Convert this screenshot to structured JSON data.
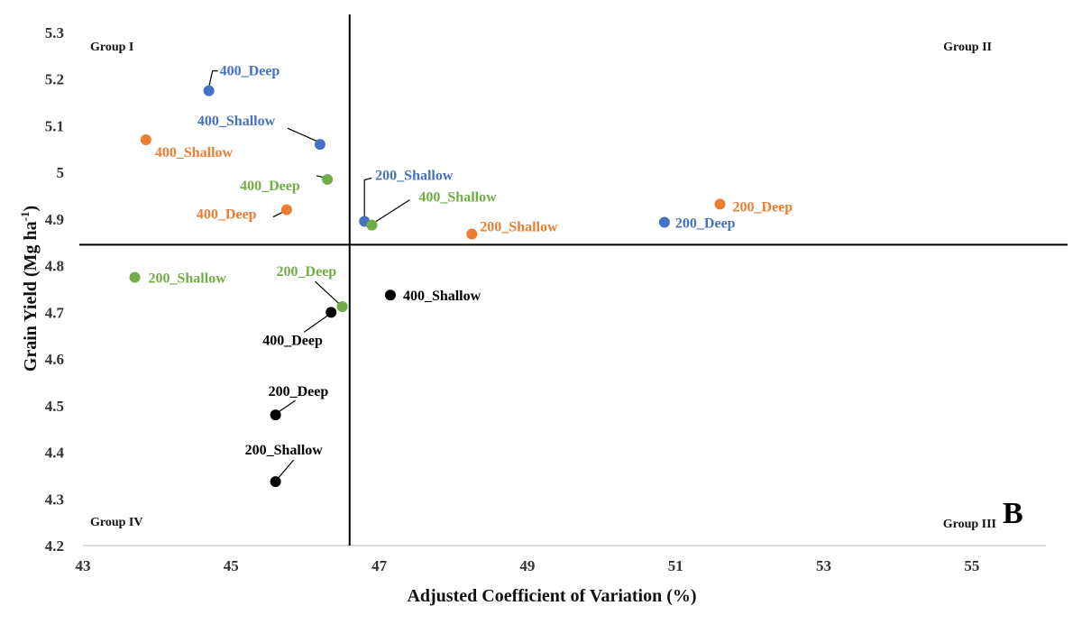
{
  "chart_data": {
    "type": "scatter",
    "xlabel": "Adjusted Coefficient of Variation (%)",
    "ylabel": "Grain Yield (Mg ha",
    "ylabel_sup": "-1",
    "ylabel_end": ")",
    "xlim": [
      43,
      56
    ],
    "ylim": [
      4.2,
      5.3
    ],
    "x_ticks": [
      43,
      45,
      47,
      49,
      51,
      53,
      55
    ],
    "x_tick_labels": [
      "43",
      "45",
      "47",
      "49",
      "51",
      "53",
      "55"
    ],
    "y_ticks": [
      4.2,
      4.3,
      4.4,
      4.5,
      4.6,
      4.7,
      4.8,
      4.9,
      5.0,
      5.1,
      5.2,
      5.3
    ],
    "y_tick_labels": [
      "4.2",
      "4.3",
      "4.4",
      "4.5",
      "4.6",
      "4.7",
      "4.8",
      "4.9",
      "5",
      "5.1",
      "5.2",
      "5.3"
    ],
    "reference_lines": {
      "x": 46.6,
      "y": 4.845
    },
    "quadrant_labels": {
      "top_left": "Group I",
      "top_right": "Group II",
      "bottom_right": "Group III",
      "bottom_left": "Group IV"
    },
    "panel_letter": "B",
    "colors": {
      "blue": "#4472c4",
      "orange": "#ed7d31",
      "green": "#70ad47",
      "black": "#000000"
    },
    "series": [
      {
        "color": "#4472c4",
        "points": [
          {
            "x": 44.7,
            "y": 5.175,
            "label": "400_Deep"
          },
          {
            "x": 46.2,
            "y": 5.06,
            "label": "400_Shallow"
          },
          {
            "x": 46.8,
            "y": 4.895,
            "label": "200_Shallow"
          },
          {
            "x": 50.85,
            "y": 4.893,
            "label": "200_Deep"
          }
        ]
      },
      {
        "color": "#ed7d31",
        "points": [
          {
            "x": 43.85,
            "y": 5.07,
            "label": "400_Shallow"
          },
          {
            "x": 45.75,
            "y": 4.92,
            "label": "400_Deep"
          },
          {
            "x": 48.25,
            "y": 4.868,
            "label": "200_Shallow"
          },
          {
            "x": 51.6,
            "y": 4.932,
            "label": "200_Deep"
          }
        ]
      },
      {
        "color": "#70ad47",
        "points": [
          {
            "x": 46.3,
            "y": 4.985,
            "label": "400_Deep"
          },
          {
            "x": 46.9,
            "y": 4.887,
            "label": "400_Shallow"
          },
          {
            "x": 43.7,
            "y": 4.775,
            "label": "200_Shallow"
          },
          {
            "x": 46.5,
            "y": 4.712,
            "label": "200_Deep"
          }
        ]
      },
      {
        "color": "#000000",
        "points": [
          {
            "x": 47.15,
            "y": 4.737,
            "label": "400_Shallow"
          },
          {
            "x": 46.35,
            "y": 4.7,
            "label": "400_Deep"
          },
          {
            "x": 45.6,
            "y": 4.48,
            "label": "200_Deep"
          },
          {
            "x": 45.6,
            "y": 4.337,
            "label": "200_Shallow"
          }
        ]
      }
    ]
  }
}
